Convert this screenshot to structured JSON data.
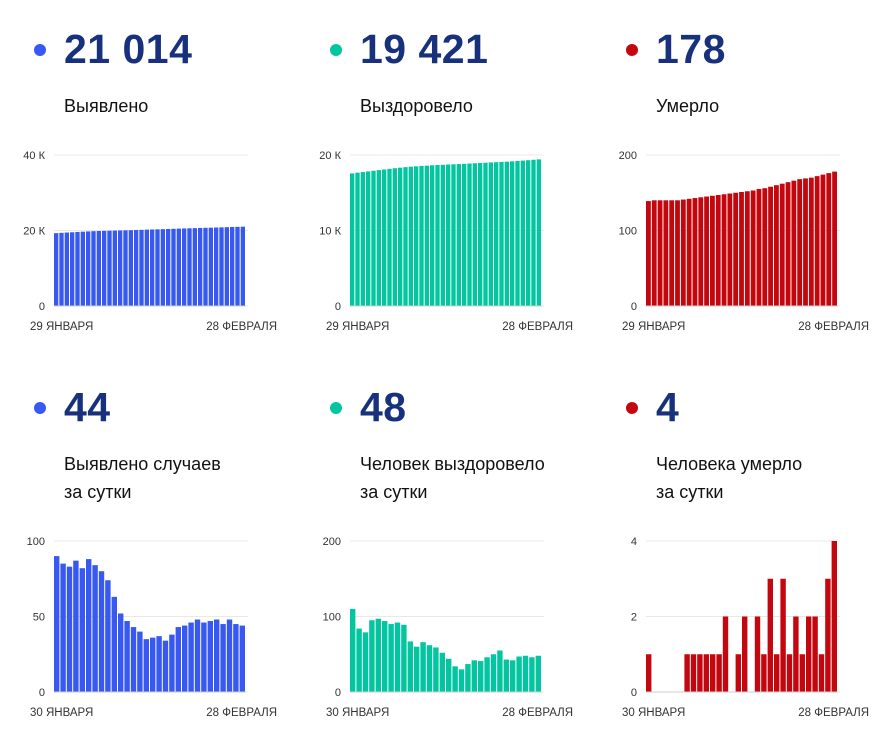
{
  "colors": {
    "blue": "#3858f2",
    "green": "#03c6a1",
    "red": "#c4070f",
    "value_text": "#17317d"
  },
  "panels": [
    {
      "value": "21 014",
      "label_lines": [
        "Выявлено"
      ],
      "color": "#3858f2",
      "chart_data": {
        "type": "bar",
        "x_start_label": "29 ЯНВАРЯ",
        "x_end_label": "28 ФЕВРАЛЯ",
        "y_ticks": [
          "40 К",
          "20 К",
          "0"
        ],
        "ylim": [
          0,
          40000
        ],
        "values": [
          19298,
          19380,
          19461,
          19528,
          19612,
          19689,
          19761,
          19825,
          19871,
          19908,
          19944,
          19981,
          20017,
          20051,
          20085,
          20126,
          20172,
          20219,
          20264,
          20311,
          20353,
          20403,
          20454,
          20497,
          20542,
          20588,
          20629,
          20678,
          20716,
          20749,
          20793,
          20837,
          20881,
          20925,
          20970,
          21014
        ]
      }
    },
    {
      "value": "19 421",
      "label_lines": [
        "Выздоровело"
      ],
      "color": "#03c6a1",
      "chart_data": {
        "type": "bar",
        "x_start_label": "29 ЯНВАРЯ",
        "x_end_label": "28 ФЕВРАЛЯ",
        "y_ticks": [
          "20 К",
          "10 К",
          "0"
        ],
        "ylim": [
          0,
          20000
        ],
        "values": [
          17560,
          17660,
          17740,
          17830,
          17910,
          18000,
          18080,
          18170,
          18250,
          18320,
          18390,
          18450,
          18500,
          18550,
          18590,
          18640,
          18670,
          18700,
          18740,
          18770,
          18800,
          18830,
          18870,
          18910,
          18940,
          18980,
          19020,
          19050,
          19080,
          19120,
          19160,
          19210,
          19260,
          19310,
          19370,
          19421
        ]
      }
    },
    {
      "value": "178",
      "label_lines": [
        "Умерло"
      ],
      "color": "#c4070f",
      "chart_data": {
        "type": "bar",
        "x_start_label": "29 ЯНВАРЯ",
        "x_end_label": "28 ФЕВРАЛЯ",
        "y_ticks": [
          "200",
          "100",
          "0"
        ],
        "ylim": [
          0,
          200
        ],
        "values": [
          139,
          140,
          140,
          140,
          140,
          140,
          141,
          142,
          143,
          144,
          145,
          146,
          147,
          148,
          149,
          150,
          151,
          152,
          153,
          155,
          156,
          158,
          160,
          162,
          164,
          166,
          168,
          169,
          170,
          172,
          174,
          176,
          178
        ]
      }
    },
    {
      "value": "44",
      "label_lines": [
        "Выявлено случаев",
        "за сутки"
      ],
      "color": "#3858f2",
      "chart_data": {
        "type": "bar",
        "x_start_label": "30 ЯНВАРЯ",
        "x_end_label": "28 ФЕВРАЛЯ",
        "y_ticks": [
          "100",
          "50",
          "0"
        ],
        "ylim": [
          0,
          100
        ],
        "values": [
          90,
          85,
          83,
          87,
          82,
          88,
          84,
          80,
          74,
          63,
          52,
          47,
          43,
          40,
          35,
          36,
          37,
          34,
          38,
          43,
          44,
          46,
          48,
          46,
          47,
          48,
          45,
          48,
          45,
          44
        ]
      }
    },
    {
      "value": "48",
      "label_lines": [
        "Человек выздоровело",
        "за сутки"
      ],
      "color": "#03c6a1",
      "chart_data": {
        "type": "bar",
        "x_start_label": "30 ЯНВАРЯ",
        "x_end_label": "28 ФЕВРАЛЯ",
        "y_ticks": [
          "200",
          "100",
          "0"
        ],
        "ylim": [
          0,
          200
        ],
        "values": [
          110,
          84,
          79,
          95,
          97,
          94,
          90,
          92,
          89,
          67,
          60,
          66,
          62,
          59,
          52,
          44,
          34,
          30,
          37,
          42,
          41,
          46,
          50,
          55,
          43,
          42,
          47,
          48,
          46,
          48
        ]
      }
    },
    {
      "value": "4",
      "label_lines": [
        "Человека умерло",
        "за сутки"
      ],
      "color": "#c4070f",
      "chart_data": {
        "type": "bar",
        "x_start_label": "30 ЯНВАРЯ",
        "x_end_label": "28 ФЕВРАЛЯ",
        "y_ticks": [
          "4",
          "2",
          "0"
        ],
        "ylim": [
          0,
          4
        ],
        "values": [
          1,
          0,
          0,
          0,
          0,
          0,
          1,
          1,
          1,
          1,
          1,
          1,
          2,
          0,
          1,
          2,
          0,
          2,
          1,
          3,
          1,
          3,
          1,
          2,
          1,
          2,
          2,
          1,
          3,
          4
        ]
      }
    }
  ]
}
